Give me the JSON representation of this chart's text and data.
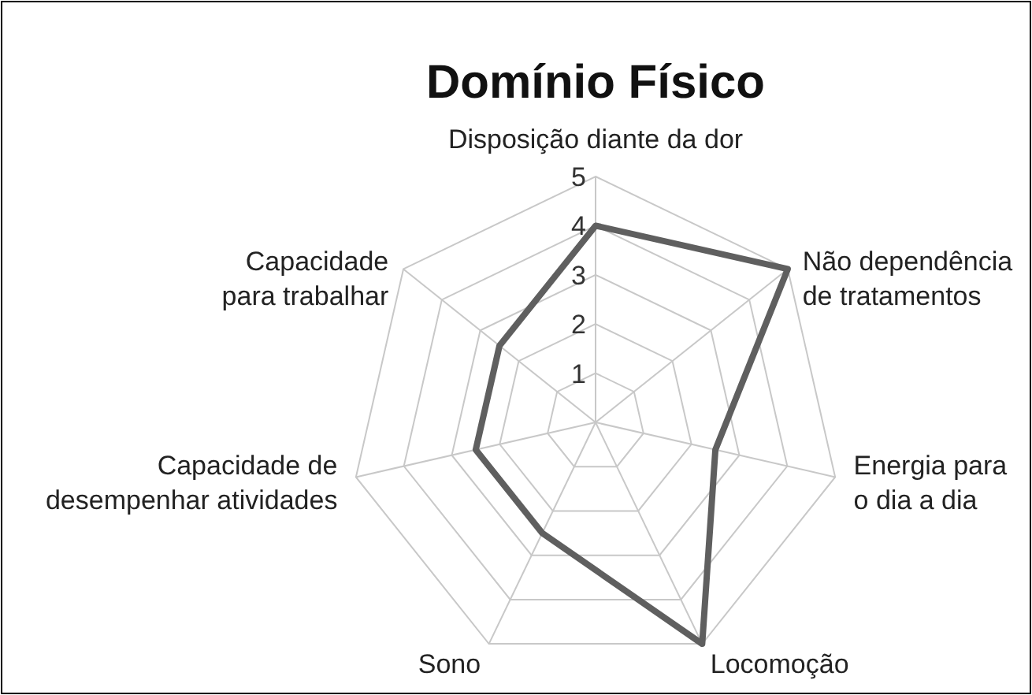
{
  "chart_data": {
    "type": "radar",
    "title": "Domínio Físico",
    "categories": [
      "Disposição diante da dor",
      "Não dependência\nde tratamentos",
      "Energia para\no dia a dia",
      "Locomoção",
      "Sono",
      "Capacidade de\ndesempenhar atividades",
      "Capacidade\npara trabalhar"
    ],
    "series": [
      {
        "color": "#5f5f5f",
        "values": [
          4,
          5,
          2.5,
          5,
          2.5,
          2.5,
          2.5
        ]
      }
    ],
    "ylim": [
      0,
      5
    ],
    "yticks": [
      1,
      2,
      3,
      4,
      5
    ],
    "grid": true,
    "marker": "none"
  }
}
